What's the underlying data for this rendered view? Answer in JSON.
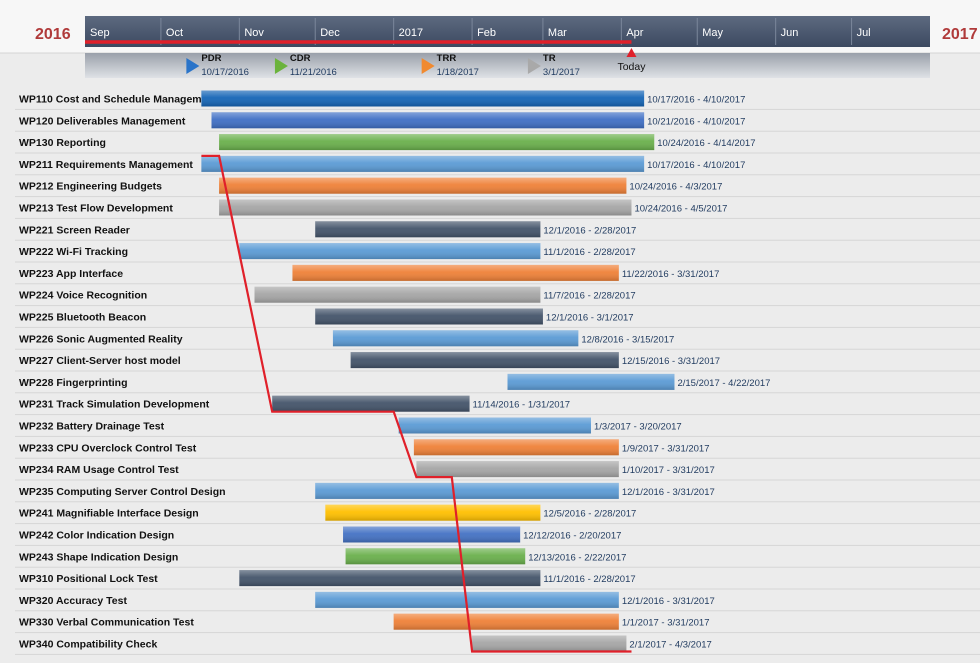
{
  "chart_data": {
    "type": "gantt",
    "year_start_label": "2016",
    "year_end_label": "2017",
    "axis_start": "2016-09-01",
    "axis_end": "2017-08-01",
    "timeline_labels": [
      {
        "label": "Sep",
        "date": "2016-09-01"
      },
      {
        "label": "Oct",
        "date": "2016-10-01"
      },
      {
        "label": "Nov",
        "date": "2016-11-01"
      },
      {
        "label": "Dec",
        "date": "2016-12-01"
      },
      {
        "label": "2017",
        "date": "2017-01-01"
      },
      {
        "label": "Feb",
        "date": "2017-02-01"
      },
      {
        "label": "Mar",
        "date": "2017-03-01"
      },
      {
        "label": "Apr",
        "date": "2017-04-01"
      },
      {
        "label": "May",
        "date": "2017-05-01"
      },
      {
        "label": "Jun",
        "date": "2017-06-01"
      },
      {
        "label": "Jul",
        "date": "2017-07-01"
      }
    ],
    "today": {
      "label": "Today",
      "date": "2017-04-05"
    },
    "milestones": [
      {
        "name": "PDR",
        "date": "2016-10-17",
        "date_label": "10/17/2016",
        "color": "#2a74c9"
      },
      {
        "name": "CDR",
        "date": "2016-11-21",
        "date_label": "11/21/2016",
        "color": "#6bb33c"
      },
      {
        "name": "TRR",
        "date": "2017-01-18",
        "date_label": "1/18/2017",
        "color": "#f08a30"
      },
      {
        "name": "TR",
        "date": "2017-03-01",
        "date_label": "3/1/2017",
        "color": "#a9a9a9"
      }
    ],
    "tasks": [
      {
        "name": "WP110 Cost and Schedule Management",
        "start": "2016-10-17",
        "end": "2017-04-10",
        "label": "10/17/2016 - 4/10/2017",
        "color": "#1565b6"
      },
      {
        "name": "WP120 Deliverables Management",
        "start": "2016-10-21",
        "end": "2017-04-10",
        "label": "10/21/2016 - 4/10/2017",
        "color": "#3f6fc5"
      },
      {
        "name": "WP130 Reporting",
        "start": "2016-10-24",
        "end": "2017-04-14",
        "label": "10/24/2016 - 4/14/2017",
        "color": "#6ab04c"
      },
      {
        "name": "WP211 Requirements Management",
        "start": "2016-10-17",
        "end": "2017-04-10",
        "label": "10/17/2016 - 4/10/2017",
        "color": "#5b9bd5"
      },
      {
        "name": "WP212 Engineering Budgets",
        "start": "2016-10-24",
        "end": "2017-04-03",
        "label": "10/24/2016 - 4/3/2017",
        "color": "#ef8138"
      },
      {
        "name": "WP213 Test Flow Development",
        "start": "2016-10-24",
        "end": "2017-04-05",
        "label": "10/24/2016 - 4/5/2017",
        "color": "#a6a6a6"
      },
      {
        "name": "WP221 Screen Reader",
        "start": "2016-12-01",
        "end": "2017-02-28",
        "label": "12/1/2016 - 2/28/2017",
        "color": "#44546a"
      },
      {
        "name": "WP222 Wi-Fi Tracking",
        "start": "2016-11-01",
        "end": "2017-02-28",
        "label": "11/1/2016 - 2/28/2017",
        "color": "#5b9bd5"
      },
      {
        "name": "WP223 App Interface",
        "start": "2016-11-22",
        "end": "2017-03-31",
        "label": "11/22/2016 - 3/31/2017",
        "color": "#ef8138"
      },
      {
        "name": "WP224 Voice Recognition",
        "start": "2016-11-07",
        "end": "2017-02-28",
        "label": "11/7/2016 - 2/28/2017",
        "color": "#a6a6a6"
      },
      {
        "name": "WP225 Bluetooth Beacon",
        "start": "2016-12-01",
        "end": "2017-03-01",
        "label": "12/1/2016 - 3/1/2017",
        "color": "#44546a"
      },
      {
        "name": "WP226 Sonic Augmented Reality",
        "start": "2016-12-08",
        "end": "2017-03-15",
        "label": "12/8/2016 - 3/15/2017",
        "color": "#5b9bd5"
      },
      {
        "name": "WP227 Client-Server host model",
        "start": "2016-12-15",
        "end": "2017-03-31",
        "label": "12/15/2016 - 3/31/2017",
        "color": "#44546a"
      },
      {
        "name": "WP228 Fingerprinting",
        "start": "2017-02-15",
        "end": "2017-04-22",
        "label": "2/15/2017 - 4/22/2017",
        "color": "#5b9bd5"
      },
      {
        "name": "WP231 Track Simulation Development",
        "start": "2016-11-14",
        "end": "2017-01-31",
        "label": "11/14/2016 - 1/31/2017",
        "color": "#44546a"
      },
      {
        "name": "WP232 Battery Drainage Test",
        "start": "2017-01-03",
        "end": "2017-03-20",
        "label": "1/3/2017 - 3/20/2017",
        "color": "#5b9bd5"
      },
      {
        "name": "WP233 CPU Overclock Control Test",
        "start": "2017-01-09",
        "end": "2017-03-31",
        "label": "1/9/2017 - 3/31/2017",
        "color": "#ef8138"
      },
      {
        "name": "WP234 RAM Usage Control Test",
        "start": "2017-01-10",
        "end": "2017-03-31",
        "label": "1/10/2017 - 3/31/2017",
        "color": "#a6a6a6"
      },
      {
        "name": "WP235 Computing Server Control Design",
        "start": "2016-12-01",
        "end": "2017-03-31",
        "label": "12/1/2016 - 3/31/2017",
        "color": "#5b9bd5"
      },
      {
        "name": "WP241 Magnifiable Interface Design",
        "start": "2016-12-05",
        "end": "2017-02-28",
        "label": "12/5/2016 - 2/28/2017",
        "color": "#ffc000"
      },
      {
        "name": "WP242 Color Indication Design",
        "start": "2016-12-12",
        "end": "2017-02-20",
        "label": "12/12/2016 - 2/20/2017",
        "color": "#4472c4"
      },
      {
        "name": "WP243 Shape Indication Design",
        "start": "2016-12-13",
        "end": "2017-02-22",
        "label": "12/13/2016 - 2/22/2017",
        "color": "#6ab04c"
      },
      {
        "name": "WP310 Positional Lock Test",
        "start": "2016-11-01",
        "end": "2017-02-28",
        "label": "11/1/2016 - 2/28/2017",
        "color": "#44546a"
      },
      {
        "name": "WP320 Accuracy Test",
        "start": "2016-12-01",
        "end": "2017-03-31",
        "label": "12/1/2016 - 3/31/2017",
        "color": "#5b9bd5"
      },
      {
        "name": "WP330 Verbal Communication Test",
        "start": "2017-01-01",
        "end": "2017-03-31",
        "label": "1/1/2017 - 3/31/2017",
        "color": "#ef8138"
      },
      {
        "name": "WP340 Compatibility Check",
        "start": "2017-02-01",
        "end": "2017-04-03",
        "label": "2/1/2017 - 4/3/2017",
        "color": "#a6a6a6"
      }
    ],
    "progress_line": {
      "color": "#e0202a",
      "points": [
        {
          "task": 3,
          "date": "2016-10-17",
          "edge": "top"
        },
        {
          "task": 3,
          "date": "2016-10-24",
          "edge": "top"
        },
        {
          "task": 14,
          "date": "2016-11-14",
          "edge": "bottom"
        },
        {
          "task": 14,
          "date": "2017-01-01",
          "edge": "bottom"
        },
        {
          "task": 17,
          "date": "2017-01-10",
          "edge": "bottom"
        },
        {
          "task": 17,
          "date": "2017-01-24",
          "edge": "bottom"
        },
        {
          "task": 25,
          "date": "2017-02-01",
          "edge": "bottom"
        },
        {
          "task": 25,
          "date": "2017-04-05",
          "edge": "bottom"
        }
      ]
    }
  }
}
